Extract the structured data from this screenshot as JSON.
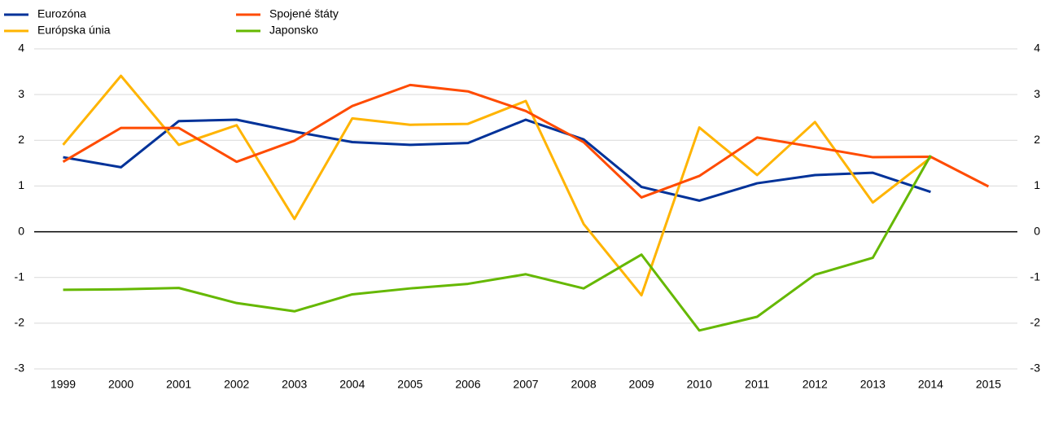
{
  "chart_data": {
    "type": "line",
    "categories": [
      "1999",
      "2000",
      "2001",
      "2002",
      "2003",
      "2004",
      "2005",
      "2006",
      "2007",
      "2008",
      "2009",
      "2010",
      "2011",
      "2012",
      "2013",
      "2014",
      "2015"
    ],
    "series": [
      {
        "name": "Eurozóna",
        "color": "#003299",
        "values": [
          1.63,
          1.41,
          2.42,
          2.45,
          2.19,
          1.96,
          1.9,
          1.94,
          2.45,
          2.02,
          0.98,
          0.68,
          1.06,
          1.24,
          1.29,
          0.87,
          null
        ]
      },
      {
        "name": "Európska únia",
        "color": "#ffb400",
        "values": [
          1.9,
          3.41,
          1.9,
          2.33,
          0.28,
          2.48,
          2.34,
          2.36,
          2.86,
          0.17,
          -1.39,
          2.28,
          1.24,
          2.4,
          0.64,
          1.62,
          null
        ]
      },
      {
        "name": "Spojené štáty",
        "color": "#ff4b00",
        "values": [
          1.53,
          2.27,
          2.27,
          1.53,
          1.99,
          2.75,
          3.21,
          3.07,
          2.64,
          1.96,
          0.75,
          1.22,
          2.06,
          1.85,
          1.63,
          1.64,
          0.99
        ]
      },
      {
        "name": "Japonsko",
        "color": "#65b800",
        "values": [
          -1.27,
          -1.26,
          -1.23,
          -1.56,
          -1.74,
          -1.37,
          -1.24,
          -1.14,
          -0.93,
          -1.24,
          -0.5,
          -2.16,
          -1.86,
          -0.94,
          -0.57,
          1.67,
          null
        ]
      }
    ],
    "ylim": [
      -3,
      4
    ],
    "yticks": [
      -3,
      -2,
      -1,
      0,
      1,
      2,
      3,
      4
    ],
    "y2lim": [
      -3,
      4
    ],
    "y2ticks": [
      -3,
      -2,
      -1,
      0,
      1,
      2,
      3,
      4
    ],
    "grid": true,
    "legend": "top-left"
  }
}
